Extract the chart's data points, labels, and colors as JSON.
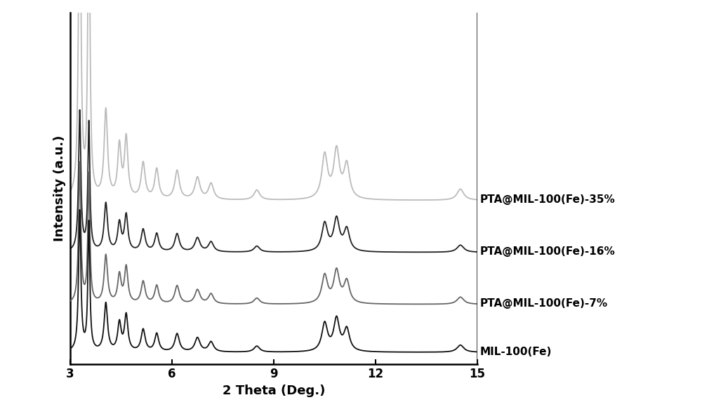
{
  "xlim": [
    3,
    15
  ],
  "ylim_label": "Intensity (a.u.)",
  "xlabel": "2 Theta (Deg.)",
  "xticks": [
    3,
    6,
    9,
    12,
    15
  ],
  "line_colors": {
    "mil": "#111111",
    "pta7": "#666666",
    "pta16": "#222222",
    "pta35": "#bbbbbb"
  },
  "line_labels": [
    "PTA@MIL-100(Fe)-35%",
    "PTA@MIL-100(Fe)-16%",
    "PTA@MIL-100(Fe)-7%",
    "MIL-100(Fe)"
  ],
  "background_color": "#ffffff",
  "figsize": [
    10.0,
    5.9
  ],
  "dpi": 100,
  "peaks": {
    "positions": [
      3.28,
      3.55,
      4.05,
      4.45,
      4.65,
      5.15,
      5.55,
      6.15,
      6.75,
      7.15,
      8.5,
      10.5,
      10.85,
      11.15,
      14.5
    ],
    "widths": [
      0.04,
      0.035,
      0.06,
      0.06,
      0.06,
      0.07,
      0.07,
      0.08,
      0.09,
      0.09,
      0.1,
      0.1,
      0.1,
      0.1,
      0.12
    ],
    "heights_mil": [
      3.5,
      3.2,
      1.2,
      0.7,
      0.9,
      0.55,
      0.45,
      0.45,
      0.35,
      0.25,
      0.15,
      0.7,
      0.8,
      0.55,
      0.18
    ],
    "heights_pta7": [
      3.5,
      3.2,
      1.2,
      0.7,
      0.9,
      0.55,
      0.45,
      0.45,
      0.35,
      0.25,
      0.15,
      0.7,
      0.8,
      0.55,
      0.18
    ],
    "heights_pta16": [
      3.5,
      3.2,
      1.2,
      0.7,
      0.9,
      0.55,
      0.45,
      0.45,
      0.35,
      0.25,
      0.15,
      0.7,
      0.8,
      0.55,
      0.18
    ],
    "heights_pta35": [
      9.0,
      8.5,
      2.2,
      1.3,
      1.5,
      0.9,
      0.75,
      0.72,
      0.55,
      0.4,
      0.25,
      1.1,
      1.2,
      0.85,
      0.28
    ]
  },
  "offsets": {
    "mil": 0.0,
    "pta7": 1.2,
    "pta16": 2.5,
    "pta35": 3.8
  },
  "ylim": [
    -0.3,
    8.5
  ]
}
